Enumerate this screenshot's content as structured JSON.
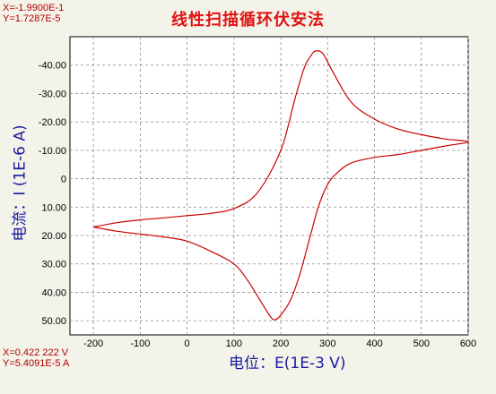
{
  "readouts": {
    "top_x": "X=-1.9900E-1",
    "top_y": "Y=1.7287E-5",
    "bottom_x": "X=0.422 222 V",
    "bottom_y": "Y=5.4091E-5 A"
  },
  "chart_data": {
    "type": "line",
    "title": "线性扫描循环伏安法",
    "xlabel": "电位：E(1E-3 V)",
    "ylabel": "电流：I (1E-6 A)",
    "xlim": [
      -250,
      600
    ],
    "ylim": [
      -50,
      55
    ],
    "y_inverted": true,
    "grid": true,
    "x_ticks": [
      -200,
      -100,
      0,
      100,
      200,
      300,
      400,
      500,
      600
    ],
    "x_tick_labels": [
      "-200",
      "-100",
      "0",
      "100",
      "200",
      "300",
      "400",
      "500",
      "600"
    ],
    "y_ticks": [
      -40,
      -30,
      -20,
      -10,
      0,
      10,
      20,
      30,
      40,
      50
    ],
    "y_tick_labels": [
      "-40.00",
      "-30.00",
      "-20.00",
      "-10.00",
      "0",
      "10.00",
      "20.00",
      "30.00",
      "40.00",
      "50.00"
    ],
    "series": [
      {
        "color": "#cc0000",
        "x": [
          -200,
          -150,
          -100,
          -50,
          0,
          50,
          100,
          150,
          200,
          230,
          250,
          265,
          275,
          290,
          310,
          350,
          400,
          450,
          500,
          550,
          600,
          550,
          500,
          450,
          400,
          350,
          320,
          300,
          280,
          260,
          240,
          220,
          200,
          190,
          180,
          160,
          130,
          100,
          50,
          0,
          -50,
          -100,
          -150,
          -200
        ],
        "y": [
          17,
          15.5,
          14.5,
          13.8,
          13,
          12.2,
          10.5,
          5,
          -10,
          -28,
          -39,
          -43.5,
          -45,
          -44,
          -38,
          -27,
          -21,
          -17.5,
          -15.5,
          -14,
          -13,
          -11.5,
          -10,
          -8.5,
          -7.5,
          -5.5,
          -2,
          2,
          10,
          22,
          34,
          43,
          48,
          49.5,
          49,
          44,
          36,
          30,
          25.5,
          22,
          20.5,
          19.5,
          18.5,
          17
        ]
      }
    ]
  }
}
